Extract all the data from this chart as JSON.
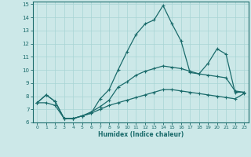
{
  "xlabel": "Humidex (Indice chaleur)",
  "xlim": [
    -0.5,
    23.5
  ],
  "ylim": [
    6,
    15.2
  ],
  "xticks": [
    0,
    1,
    2,
    3,
    4,
    5,
    6,
    7,
    8,
    9,
    10,
    11,
    12,
    13,
    14,
    15,
    16,
    17,
    18,
    19,
    20,
    21,
    22,
    23
  ],
  "yticks": [
    6,
    7,
    8,
    9,
    10,
    11,
    12,
    13,
    14,
    15
  ],
  "bg_color": "#cce8e8",
  "line_color": "#1a6b6b",
  "line_width": 0.9,
  "marker": "P",
  "marker_size": 2.5,
  "series": [
    [
      7.5,
      8.1,
      7.6,
      6.3,
      6.3,
      6.5,
      6.7,
      7.8,
      8.5,
      10.0,
      11.4,
      12.7,
      13.5,
      13.8,
      14.9,
      13.5,
      12.2,
      9.8,
      9.7,
      10.5,
      11.6,
      11.2,
      8.3,
      8.3
    ],
    [
      7.5,
      8.1,
      7.6,
      6.3,
      6.3,
      6.5,
      6.8,
      7.2,
      7.7,
      8.7,
      9.1,
      9.6,
      9.9,
      10.1,
      10.3,
      10.2,
      10.1,
      9.9,
      9.7,
      9.6,
      9.5,
      9.4,
      8.4,
      8.3
    ],
    [
      7.5,
      7.5,
      7.3,
      6.3,
      6.3,
      6.5,
      6.7,
      7.0,
      7.3,
      7.5,
      7.7,
      7.9,
      8.1,
      8.3,
      8.5,
      8.5,
      8.4,
      8.3,
      8.2,
      8.1,
      8.0,
      7.9,
      7.8,
      8.2
    ]
  ]
}
